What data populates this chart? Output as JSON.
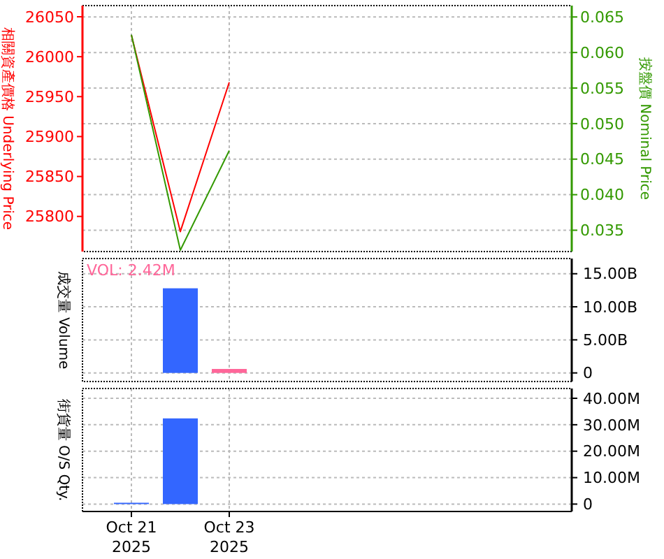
{
  "chart_data": [
    {
      "type": "line",
      "x": [
        "2025-10-21",
        "2025-10-22",
        "2025-10-23"
      ],
      "xlim": [
        "2025-10-20",
        "2025-10-30"
      ],
      "xticks": [
        {
          "value": "2025-10-21",
          "label": null
        },
        {
          "value": "2025-10-23",
          "label": null
        }
      ],
      "ylabel": "相關資產價格 Underlying Price",
      "y2label": "按盤價 Nominal Price",
      "ylim": [
        25756,
        26064
      ],
      "yticks": [
        25800,
        25850,
        25900,
        25950,
        26000,
        26050
      ],
      "y2lim": [
        0.032,
        0.0666
      ],
      "y2ticks": [
        {
          "value": 0.035,
          "label": "0.035"
        },
        {
          "value": 0.04,
          "label": "0.040"
        },
        {
          "value": 0.045,
          "label": "0.045"
        },
        {
          "value": 0.05,
          "label": "0.050"
        },
        {
          "value": 0.055,
          "label": "0.055"
        },
        {
          "value": 0.06,
          "label": "0.060"
        },
        {
          "value": 0.065,
          "label": "0.065"
        }
      ],
      "series": [
        {
          "color": "#ff0000",
          "values": [
            26027,
            25781,
            25968
          ]
        },
        {
          "color": "#339900",
          "axis": "y2",
          "values": [
            0.0625,
            0.0322,
            0.0462
          ]
        }
      ],
      "grid": true,
      "tick_labels": "y"
    },
    {
      "type": "bar",
      "x": [
        "2025-10-22",
        "2025-10-23"
      ],
      "xlim": [
        "2025-10-20",
        "2025-10-30"
      ],
      "xticks": [
        {
          "value": "2025-10-21",
          "label": null
        },
        {
          "value": "2025-10-23",
          "label": null
        }
      ],
      "ylabel": "成交量 Volume",
      "ylim": [
        -1.3,
        17.3
      ],
      "yticks": [
        0,
        {
          "value": 5,
          "label": "5.00B"
        },
        {
          "value": 10,
          "label": "10.00B"
        },
        {
          "value": 15,
          "label": "15.00B"
        }
      ],
      "values": [
        12.8,
        0.6
      ],
      "colors": [
        "#3366ff",
        "#ff6699"
      ],
      "annotations": [
        "VOL: 2.42M"
      ],
      "grid": true,
      "tick_labels": "y"
    },
    {
      "type": "bar",
      "x": [
        "2025-10-21",
        "2025-10-22"
      ],
      "xlim": [
        "2025-10-20",
        "2025-10-30"
      ],
      "xticks": [
        {
          "value": "2025-10-21",
          "label": "Oct 21\n2025"
        },
        {
          "value": "2025-10-23",
          "label": "Oct 23\n2025"
        }
      ],
      "ylabel": "街貨量 O/S Qty.",
      "ylim": [
        -2.8,
        43.7
      ],
      "yticks": [
        0,
        {
          "value": 10,
          "label": "10.00M"
        },
        {
          "value": 20,
          "label": "20.00M"
        },
        {
          "value": 30,
          "label": "30.00M"
        },
        {
          "value": 40,
          "label": "40.00M"
        }
      ],
      "values": [
        0.5,
        32.4
      ],
      "color": "#3366ff",
      "grid": true
    }
  ]
}
